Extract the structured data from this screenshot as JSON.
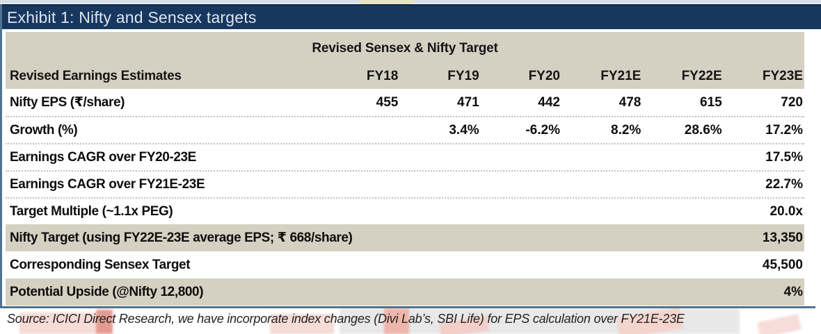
{
  "exhibit": {
    "title": "Exhibit 1: Nifty and Sensex targets"
  },
  "table": {
    "band_title": "Revised Sensex & Nifty Target",
    "row_header_label": "Revised Earnings Estimates",
    "columns": [
      "FY18",
      "FY19",
      "FY20",
      "FY21E",
      "FY22E",
      "FY23E"
    ],
    "rows": [
      {
        "label": "Nifty EPS (₹/share)",
        "values": [
          "455",
          "471",
          "442",
          "478",
          "615",
          "720"
        ]
      },
      {
        "label": "Growth (%)",
        "values": [
          "",
          "3.4%",
          "-6.2%",
          "8.2%",
          "28.6%",
          "17.2%"
        ]
      },
      {
        "label": "Earnings CAGR over FY20-23E",
        "values": [
          "",
          "",
          "",
          "",
          "",
          "17.5%"
        ]
      },
      {
        "label": "Earnings CAGR over FY21E-23E",
        "values": [
          "",
          "",
          "",
          "",
          "",
          "22.7%"
        ]
      },
      {
        "label": "Target Multiple (~1.1x PEG)",
        "values": [
          "",
          "",
          "",
          "",
          "",
          "20.0x"
        ]
      },
      {
        "label": "Nifty Target (using FY22E-23E average EPS; ₹ 668/share)",
        "values": [
          "",
          "",
          "",
          "",
          "",
          "13,350"
        ]
      },
      {
        "label": "Corresponding Sensex Target",
        "values": [
          "",
          "",
          "",
          "",
          "",
          "45,500"
        ]
      },
      {
        "label": "Potential Upside (@Nifty 12,800)",
        "values": [
          "",
          "",
          "",
          "",
          "",
          "4%"
        ]
      }
    ]
  },
  "source_note": "Source: ICICI Direct Research, we have incorporate index changes (Divi Lab’s, SBI Life) for EPS calculation over FY21E-23E",
  "colors": {
    "title_bar_navy": "#17375e",
    "band_beige": "#d5d1c2",
    "rule_steel_blue": "#4f7391"
  }
}
